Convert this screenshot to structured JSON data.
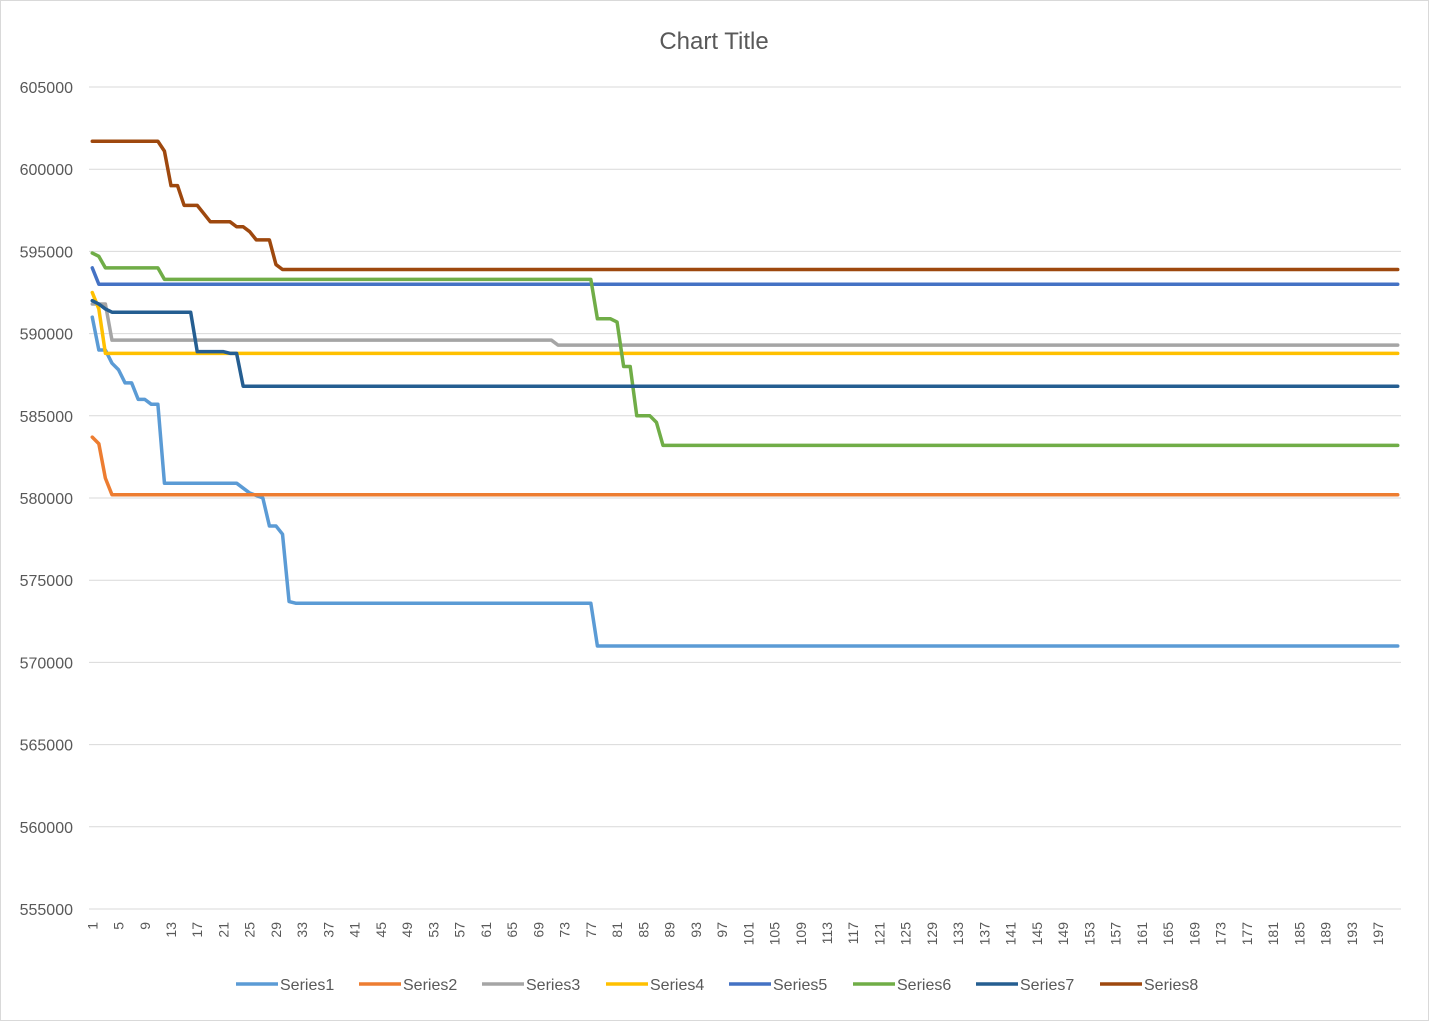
{
  "chart_data": {
    "type": "line",
    "title": "Chart Title",
    "xlabel": "",
    "ylabel": "",
    "ylim": [
      555000,
      605000
    ],
    "ystep": 5000,
    "x_count": 200,
    "x_tick_start": 1,
    "x_tick_step": 4,
    "grid": true,
    "legend_position": "bottom",
    "series": [
      {
        "name": "Series1",
        "color": "#5b9bd5",
        "points": [
          [
            1,
            591000
          ],
          [
            2,
            589000
          ],
          [
            3,
            589000
          ],
          [
            4,
            588200
          ],
          [
            5,
            587800
          ],
          [
            6,
            587000
          ],
          [
            7,
            587000
          ],
          [
            8,
            586000
          ],
          [
            9,
            586000
          ],
          [
            10,
            585700
          ],
          [
            11,
            585700
          ],
          [
            12,
            580900
          ],
          [
            23,
            580900
          ],
          [
            25,
            580300
          ],
          [
            27,
            580000
          ],
          [
            28,
            578300
          ],
          [
            29,
            578300
          ],
          [
            30,
            577800
          ],
          [
            31,
            573700
          ],
          [
            32,
            573600
          ],
          [
            77,
            573600
          ],
          [
            78,
            571000
          ],
          [
            200,
            571000
          ]
        ]
      },
      {
        "name": "Series2",
        "color": "#ed7d31",
        "points": [
          [
            1,
            583700
          ],
          [
            2,
            583300
          ],
          [
            3,
            581200
          ],
          [
            4,
            580200
          ],
          [
            200,
            580200
          ]
        ]
      },
      {
        "name": "Series3",
        "color": "#a5a5a5",
        "points": [
          [
            1,
            591800
          ],
          [
            3,
            591800
          ],
          [
            4,
            589600
          ],
          [
            71,
            589600
          ],
          [
            72,
            589300
          ],
          [
            200,
            589300
          ]
        ]
      },
      {
        "name": "Series4",
        "color": "#ffc000",
        "points": [
          [
            1,
            592500
          ],
          [
            2,
            591500
          ],
          [
            3,
            588800
          ],
          [
            200,
            588800
          ]
        ]
      },
      {
        "name": "Series5",
        "color": "#4472c4",
        "points": [
          [
            1,
            594000
          ],
          [
            2,
            593000
          ],
          [
            200,
            593000
          ]
        ]
      },
      {
        "name": "Series6",
        "color": "#70ad47",
        "points": [
          [
            1,
            594900
          ],
          [
            2,
            594700
          ],
          [
            3,
            594000
          ],
          [
            11,
            594000
          ],
          [
            12,
            593300
          ],
          [
            77,
            593300
          ],
          [
            78,
            590900
          ],
          [
            80,
            590900
          ],
          [
            81,
            590700
          ],
          [
            82,
            588000
          ],
          [
            83,
            588000
          ],
          [
            84,
            585000
          ],
          [
            86,
            585000
          ],
          [
            87,
            584600
          ],
          [
            88,
            583200
          ],
          [
            200,
            583200
          ]
        ]
      },
      {
        "name": "Series7",
        "color": "#255e91",
        "points": [
          [
            1,
            592000
          ],
          [
            2,
            591800
          ],
          [
            3,
            591500
          ],
          [
            4,
            591300
          ],
          [
            16,
            591300
          ],
          [
            17,
            588900
          ],
          [
            21,
            588900
          ],
          [
            22,
            588800
          ],
          [
            23,
            588800
          ],
          [
            24,
            586800
          ],
          [
            200,
            586800
          ]
        ]
      },
      {
        "name": "Series8",
        "color": "#9e480e",
        "points": [
          [
            1,
            601700
          ],
          [
            11,
            601700
          ],
          [
            12,
            601100
          ],
          [
            13,
            599000
          ],
          [
            14,
            599000
          ],
          [
            15,
            597800
          ],
          [
            17,
            597800
          ],
          [
            18,
            597300
          ],
          [
            19,
            596800
          ],
          [
            22,
            596800
          ],
          [
            23,
            596500
          ],
          [
            24,
            596500
          ],
          [
            25,
            596200
          ],
          [
            26,
            595700
          ],
          [
            28,
            595700
          ],
          [
            29,
            594200
          ],
          [
            30,
            593900
          ],
          [
            200,
            593900
          ]
        ]
      }
    ]
  }
}
